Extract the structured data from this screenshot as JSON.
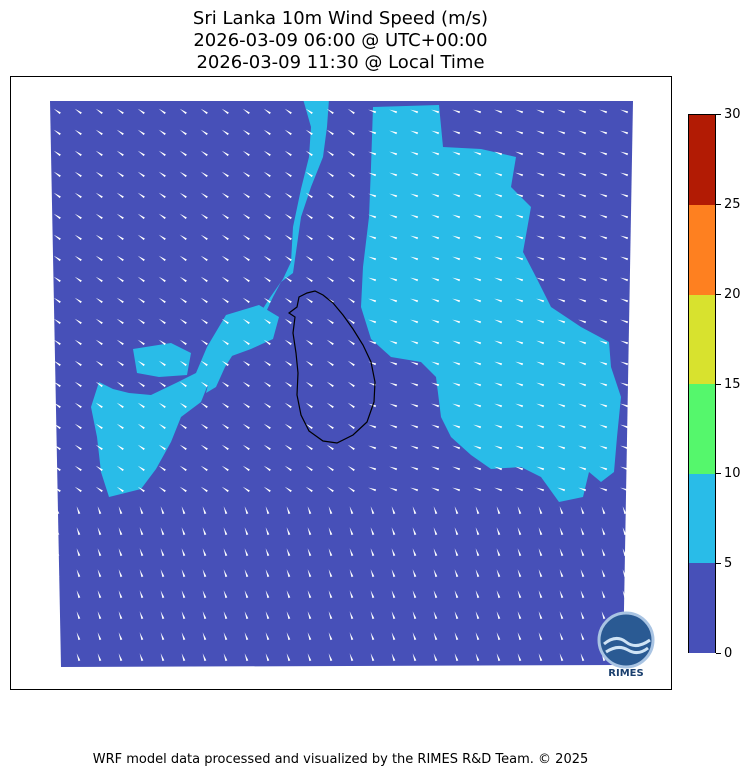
{
  "title": {
    "line1": "Sri Lanka 10m Wind Speed (m/s)",
    "line2": "2026-03-09 06:00 @ UTC+00:00",
    "line3": "2026-03-09 11:30 @ Local Time"
  },
  "colorbar": {
    "min": 0,
    "max": 30,
    "levels": [
      {
        "from": 0,
        "to": 5,
        "color": "#4750b8"
      },
      {
        "from": 5,
        "to": 10,
        "color": "#29bce8"
      },
      {
        "from": 10,
        "to": 15,
        "color": "#55f76c"
      },
      {
        "from": 15,
        "to": 20,
        "color": "#d8e22e"
      },
      {
        "from": 20,
        "to": 25,
        "color": "#fe8020"
      },
      {
        "from": 25,
        "to": 30,
        "color": "#b21b04"
      }
    ],
    "tick_labels": [
      "0",
      "5",
      "10",
      "15",
      "20",
      "25",
      "30"
    ]
  },
  "map": {
    "background_color": "#4750b8",
    "high_wind_color": "#29bce8",
    "coastline_color": "#000000",
    "wind_arrow_color": "#ffffff"
  },
  "logo": {
    "text": "RIMES"
  },
  "footer": "WRF model data processed and visualized by the RIMES R&D Team. © 2025"
}
